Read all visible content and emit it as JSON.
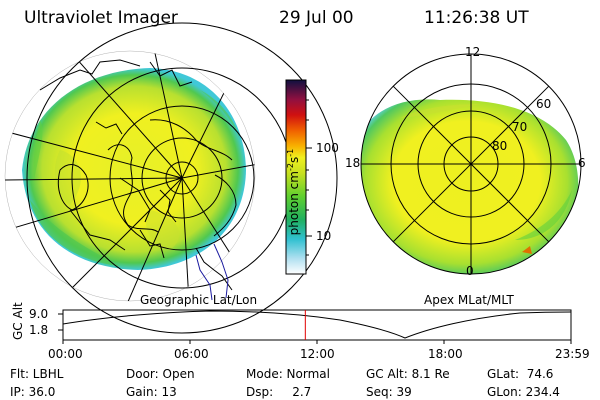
{
  "header": {
    "instrument": "Ultraviolet Imager",
    "date": "29 Jul 00",
    "time": "11:26:38 UT"
  },
  "left_map": {
    "title": "Geographic Lat/Lon"
  },
  "right_map": {
    "title": "Apex MLat/MLT",
    "mlt_labels": [
      "12",
      "18",
      "6",
      "0"
    ],
    "lat_labels": [
      "60",
      "70",
      "80"
    ]
  },
  "colorbar": {
    "label": "photon cm",
    "label_sup1": "-2",
    "label_s": "s",
    "label_sup2": "-1",
    "ticks": [
      "100",
      "10"
    ],
    "scale": "log"
  },
  "timeline": {
    "ylabel": "GC Alt",
    "yticks": [
      "9.0",
      "1.8"
    ],
    "xticks": [
      "00:00",
      "06:00",
      "12:00",
      "18:00",
      "23:59"
    ],
    "current_time_fraction": 0.477,
    "colors": {
      "marker": "#e00000",
      "curve": "#000000"
    }
  },
  "info": {
    "row1": {
      "flt": "Flt: LBHL",
      "door": "Door: Open",
      "mode": "Mode: Normal",
      "gcalt": "GC Alt: 8.1 Re",
      "glat": "GLat:  74.6"
    },
    "row2": {
      "ip": "IP: 36.0",
      "gain": "Gain: 13",
      "dsp": "Dsp:     2.7",
      "seq": "Seq: 39",
      "glon": "GLon: 234.4"
    }
  },
  "colors": {
    "aurora_yellow": "#f0f020",
    "aurora_green": "#60d040",
    "aurora_cyan": "#40c8d8",
    "colorbar_top": "#101040"
  }
}
